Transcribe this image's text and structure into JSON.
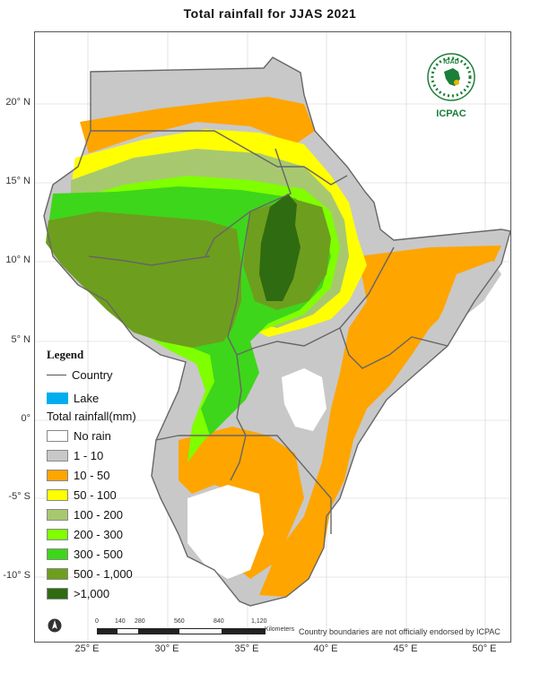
{
  "title": "Total rainfall for JJAS 2021",
  "map": {
    "y_axis_labels": [
      "20° N",
      "15° N",
      "10° N",
      "5° N",
      "0°",
      "-5° S",
      "-10° S"
    ],
    "x_axis_labels": [
      "25° E",
      "30° E",
      "35° E",
      "40° E",
      "45° E",
      "50° E"
    ]
  },
  "legend": {
    "title": "Legend",
    "country_label": "Country",
    "lake_label": "Lake",
    "lake_color": "#00aeef",
    "rainfall_title": "Total rainfall(mm)",
    "classes": [
      {
        "label": "No rain",
        "color": "#ffffff"
      },
      {
        "label": "1 - 10",
        "color": "#c8c8c8"
      },
      {
        "label": "10 - 50",
        "color": "#ffa500"
      },
      {
        "label": "50 - 100",
        "color": "#ffff00"
      },
      {
        "label": "100 - 200",
        "color": "#a8c870"
      },
      {
        "label": "200 - 300",
        "color": "#7fff00"
      },
      {
        "label": "300 - 500",
        "color": "#3ed61a"
      },
      {
        "label": "500 - 1,000",
        "color": "#6e9e1e"
      },
      {
        "label": ">1,000",
        "color": "#2f6b10"
      }
    ]
  },
  "logo": {
    "text": "IGAD",
    "acronym": "ICPAC",
    "color": "#1a7f37"
  },
  "scalebar": {
    "ticks": [
      "0",
      "140",
      "280",
      "560",
      "840",
      "1,120"
    ],
    "unit": "Kilometers"
  },
  "disclaimer": "Country boundaries are not officially endorsed by ICPAC"
}
